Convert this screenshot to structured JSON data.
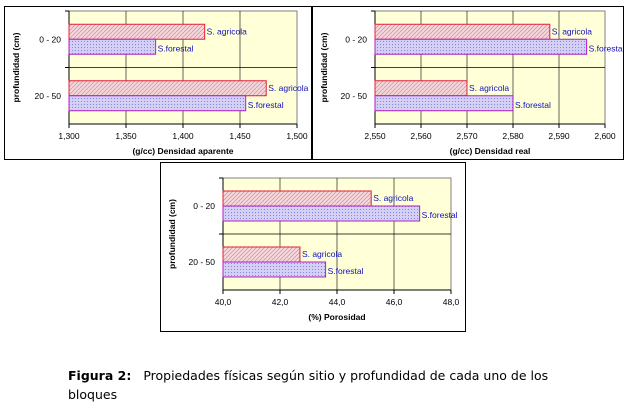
{
  "chart_data": [
    {
      "type": "bar",
      "orientation": "horizontal",
      "categories": [
        "0 - 20",
        "20 - 50"
      ],
      "series": [
        {
          "name": "S. agricola",
          "values": [
            1.419,
            1.473
          ],
          "color": "#f2d7dc",
          "edge": "#e0203a",
          "pattern": "diagonal"
        },
        {
          "name": "S.forestal",
          "values": [
            1.376,
            1.455
          ],
          "color": "#d4d0f4",
          "edge": "#b020c0",
          "pattern": "dots"
        }
      ],
      "xlabel": "(g/cc) Densidad aparente",
      "ylabel": "profundidad (cm)",
      "xlim": [
        1.3,
        1.5
      ],
      "ticks": [
        "1,300",
        "1,350",
        "1,400",
        "1,450",
        "1,500"
      ],
      "plot_bg": "#ffffd8",
      "grid": true
    },
    {
      "type": "bar",
      "orientation": "horizontal",
      "categories": [
        "0 - 20",
        "20 - 50"
      ],
      "series": [
        {
          "name": "S. agricola",
          "values": [
            2.588,
            2.57
          ],
          "color": "#f2d7dc",
          "edge": "#e0203a",
          "pattern": "diagonal"
        },
        {
          "name": "S.forestal",
          "values": [
            2.596,
            2.58
          ],
          "color": "#d4d0f4",
          "edge": "#b020c0",
          "pattern": "dots"
        }
      ],
      "xlabel": "(g/cc) Densidad real",
      "ylabel": "profundidad (cm)",
      "xlim": [
        2.55,
        2.6
      ],
      "ticks": [
        "2,550",
        "2,560",
        "2,570",
        "2,580",
        "2,590",
        "2,600"
      ],
      "plot_bg": "#ffffd8",
      "grid": true
    },
    {
      "type": "bar",
      "orientation": "horizontal",
      "categories": [
        "0 - 20",
        "20 - 50"
      ],
      "series": [
        {
          "name": "S. agricola",
          "values": [
            45.2,
            42.7
          ],
          "color": "#f2d7dc",
          "edge": "#e0203a",
          "pattern": "diagonal"
        },
        {
          "name": "S.forestal",
          "values": [
            46.9,
            43.6
          ],
          "color": "#d4d0f4",
          "edge": "#b020c0",
          "pattern": "dots"
        }
      ],
      "xlabel": "(%)  Porosidad",
      "ylabel": "profundidad (cm)",
      "xlim": [
        40,
        48
      ],
      "ticks": [
        "40,0",
        "42,0",
        "44,0",
        "46,0",
        "48,0"
      ],
      "plot_bg": "#ffffd8",
      "grid": true
    }
  ],
  "caption": {
    "label": "Figura 2:",
    "text": "Propiedades físicas  según sitio y profundidad de cada uno de los bloques"
  },
  "colors": {
    "series_label": "#1010c0",
    "grid": "#000000",
    "plot_border": "#808080"
  }
}
